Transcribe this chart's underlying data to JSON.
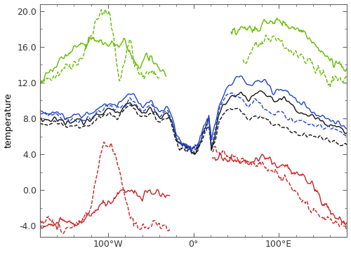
{
  "ylabel": "temperature",
  "ylim": [
    -5.2,
    20.8
  ],
  "yticks": [
    -4.0,
    0.0,
    4.0,
    8.0,
    12.0,
    16.0,
    20.0
  ],
  "xtick_positions": [
    -100,
    0,
    100
  ],
  "xtick_labels": [
    "100°W",
    "0°",
    "100°E"
  ],
  "colors": {
    "red": "#cc2222",
    "black": "#111111",
    "blue": "#2244cc",
    "green": "#66bb00"
  },
  "lw": 1.0
}
